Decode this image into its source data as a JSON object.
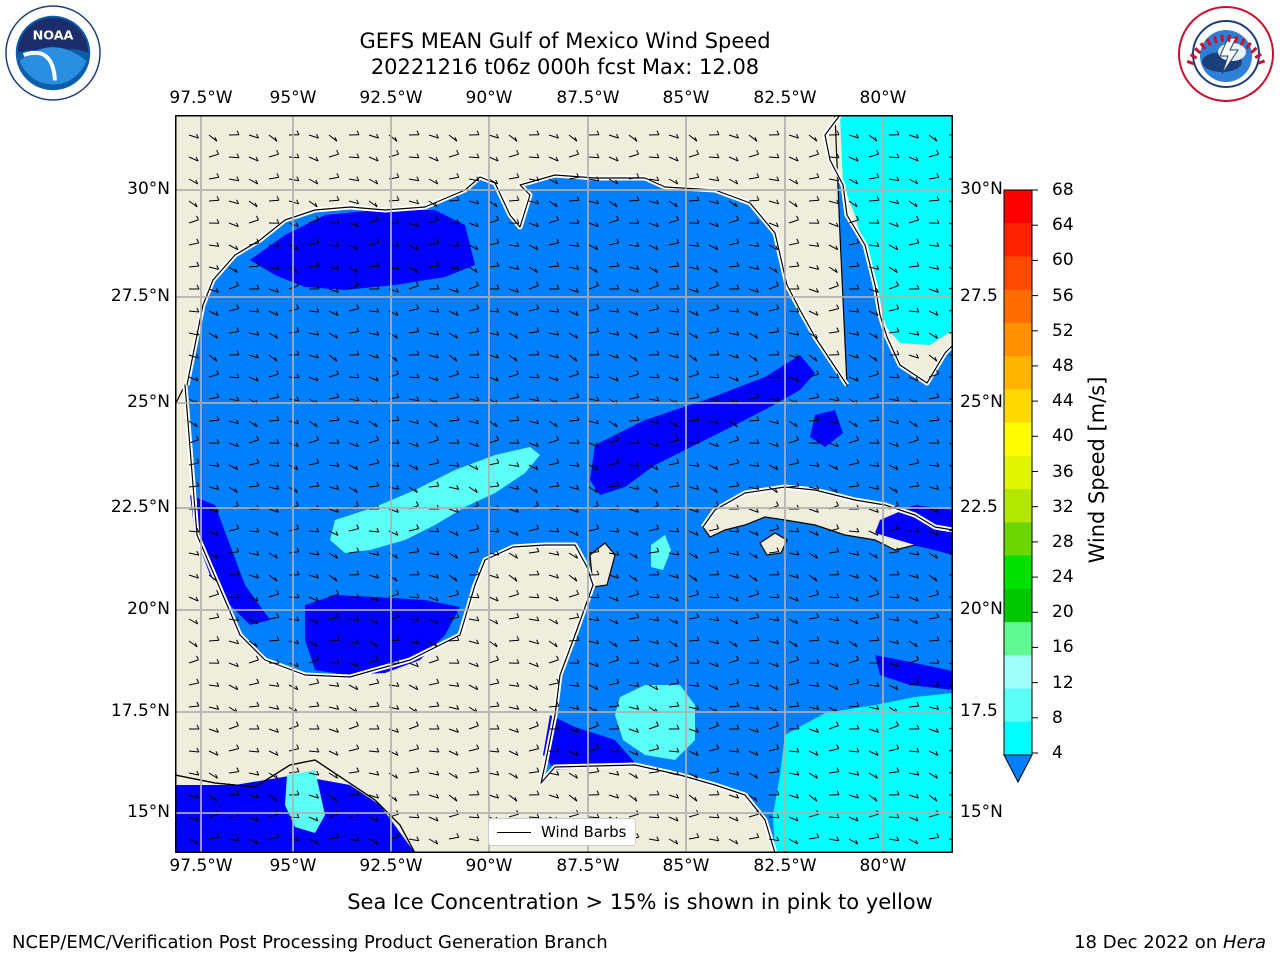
{
  "title_line1": "GEFS MEAN Gulf of Mexico Wind Speed",
  "title_line2": "20221216 t06z 000h fcst   Max: 12.08",
  "lon_labels": [
    "97.5°W",
    "95°W",
    "92.5°W",
    "90°W",
    "87.5°W",
    "85°W",
    "82.5°W",
    "80°W"
  ],
  "lat_labels_left": [
    "30°N",
    "27.5°N",
    "25°N",
    "22.5°N",
    "20°N",
    "17.5°N",
    "15°N"
  ],
  "lat_labels_right": [
    "30°N",
    "27.5",
    "25°N",
    "22.5",
    "20°N",
    "17.5",
    "15°N"
  ],
  "legend_label": "Wind Barbs",
  "colorbar": {
    "title": "Wind Speed [m/s]",
    "ticks": [
      "68",
      "64",
      "60",
      "56",
      "52",
      "48",
      "44",
      "40",
      "36",
      "32",
      "28",
      "24",
      "20",
      "16",
      "12",
      "8",
      "4"
    ],
    "colors": [
      "#ff0000",
      "#ff2400",
      "#ff4a00",
      "#ff6d00",
      "#ff9100",
      "#ffb400",
      "#ffd800",
      "#fffc00",
      "#e0f500",
      "#b4e700",
      "#6cd600",
      "#00e100",
      "#00c800",
      "#60f890",
      "#a0fffa",
      "#5cfff5",
      "#00ffff",
      "#0080ff"
    ]
  },
  "note": "Sea Ice Concentration > 15% is shown in pink to yellow",
  "credit": "NCEP/EMC/Verification Post Processing Product Generation Branch",
  "date_prefix": "18 Dec 2022 on ",
  "date_host": "Hera",
  "logos": {
    "left": "noaa-logo",
    "right": "nws-logo"
  },
  "map_colors": {
    "land": "#efeedc",
    "band_4_8": "#0080ff",
    "band_below_4": "#0000ff",
    "band_8_12": "#00ffff",
    "band_12_16": "#5cfff5"
  }
}
